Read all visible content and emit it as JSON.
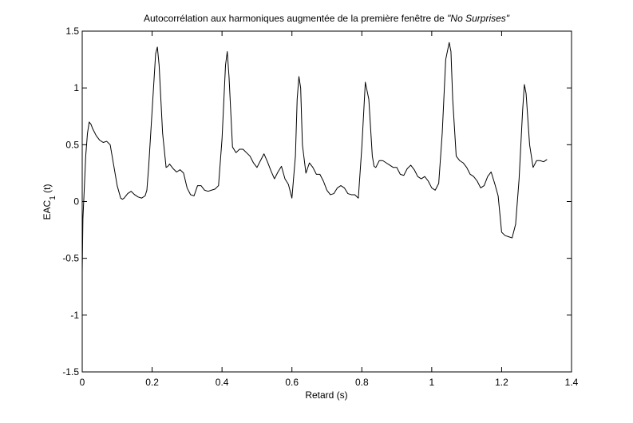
{
  "chart_data": {
    "type": "line",
    "title_prefix": "Autocorrélation aux harmoniques augmentée de la première fenêtre de ",
    "title_italic": "\"No Surprises\"",
    "xlabel": "Retard (s)",
    "ylabel_main": "EAC",
    "ylabel_sub": "1",
    "ylabel_suffix": " (t)",
    "xlim": [
      0,
      1.4
    ],
    "ylim": [
      -1.5,
      1.5
    ],
    "xticks": [
      0,
      0.2,
      0.4,
      0.6,
      0.8,
      1,
      1.2,
      1.4
    ],
    "xtick_labels": [
      "0",
      "0.2",
      "0.4",
      "0.6",
      "0.8",
      "1",
      "1.2",
      "1.4"
    ],
    "yticks": [
      -1.5,
      -1,
      -0.5,
      0,
      0.5,
      1,
      1.5
    ],
    "ytick_labels": [
      "-1.5",
      "-1",
      "-0.5",
      "0",
      "0.5",
      "1",
      "1.5"
    ],
    "grid": false,
    "line_color": "#000000",
    "series": [
      {
        "x": [
          0,
          0.002,
          0.005,
          0.01,
          0.015,
          0.02,
          0.025,
          0.03,
          0.04,
          0.05,
          0.06,
          0.07,
          0.08,
          0.09,
          0.1,
          0.11,
          0.115,
          0.12,
          0.13,
          0.14,
          0.15,
          0.16,
          0.17,
          0.18,
          0.185,
          0.19,
          0.2,
          0.21,
          0.215,
          0.22,
          0.23,
          0.24,
          0.245,
          0.25,
          0.26,
          0.27,
          0.28,
          0.29,
          0.3,
          0.31,
          0.32,
          0.33,
          0.34,
          0.35,
          0.36,
          0.37,
          0.38,
          0.39,
          0.4,
          0.41,
          0.415,
          0.42,
          0.43,
          0.44,
          0.45,
          0.46,
          0.47,
          0.48,
          0.49,
          0.5,
          0.51,
          0.52,
          0.53,
          0.54,
          0.55,
          0.56,
          0.57,
          0.58,
          0.59,
          0.6,
          0.61,
          0.615,
          0.62,
          0.625,
          0.63,
          0.64,
          0.65,
          0.66,
          0.67,
          0.68,
          0.69,
          0.7,
          0.71,
          0.72,
          0.73,
          0.74,
          0.75,
          0.76,
          0.77,
          0.78,
          0.79,
          0.8,
          0.81,
          0.82,
          0.83,
          0.835,
          0.84,
          0.85,
          0.86,
          0.87,
          0.88,
          0.89,
          0.9,
          0.91,
          0.92,
          0.93,
          0.94,
          0.95,
          0.96,
          0.97,
          0.98,
          0.99,
          1.0,
          1.01,
          1.02,
          1.03,
          1.04,
          1.05,
          1.055,
          1.06,
          1.07,
          1.08,
          1.09,
          1.1,
          1.11,
          1.12,
          1.13,
          1.14,
          1.15,
          1.16,
          1.17,
          1.18,
          1.19,
          1.2,
          1.21,
          1.22,
          1.23,
          1.24,
          1.25,
          1.26,
          1.265,
          1.27,
          1.28,
          1.29,
          1.3,
          1.31,
          1.32,
          1.33
        ],
        "y": [
          -0.62,
          -0.15,
          0.05,
          0.4,
          0.6,
          0.7,
          0.68,
          0.64,
          0.58,
          0.54,
          0.52,
          0.53,
          0.5,
          0.32,
          0.14,
          0.03,
          0.02,
          0.03,
          0.07,
          0.09,
          0.06,
          0.04,
          0.03,
          0.05,
          0.1,
          0.3,
          0.8,
          1.3,
          1.36,
          1.2,
          0.6,
          0.3,
          0.31,
          0.33,
          0.29,
          0.26,
          0.28,
          0.25,
          0.12,
          0.06,
          0.05,
          0.14,
          0.14,
          0.1,
          0.09,
          0.1,
          0.11,
          0.14,
          0.55,
          1.2,
          1.32,
          1.1,
          0.48,
          0.43,
          0.46,
          0.46,
          0.43,
          0.4,
          0.34,
          0.3,
          0.36,
          0.42,
          0.35,
          0.27,
          0.2,
          0.26,
          0.31,
          0.2,
          0.15,
          0.03,
          0.4,
          0.9,
          1.1,
          1.0,
          0.5,
          0.25,
          0.34,
          0.3,
          0.24,
          0.24,
          0.18,
          0.1,
          0.06,
          0.07,
          0.12,
          0.14,
          0.12,
          0.07,
          0.06,
          0.06,
          0.03,
          0.48,
          1.05,
          0.9,
          0.4,
          0.31,
          0.3,
          0.36,
          0.36,
          0.34,
          0.32,
          0.3,
          0.3,
          0.24,
          0.23,
          0.29,
          0.32,
          0.28,
          0.22,
          0.2,
          0.22,
          0.18,
          0.12,
          0.1,
          0.16,
          0.6,
          1.25,
          1.4,
          1.32,
          0.9,
          0.4,
          0.36,
          0.34,
          0.3,
          0.24,
          0.22,
          0.18,
          0.12,
          0.14,
          0.22,
          0.26,
          0.16,
          0.05,
          -0.27,
          -0.3,
          -0.31,
          -0.32,
          -0.2,
          0.2,
          0.8,
          1.03,
          0.95,
          0.5,
          0.3,
          0.36,
          0.36,
          0.35,
          0.37
        ]
      }
    ]
  }
}
